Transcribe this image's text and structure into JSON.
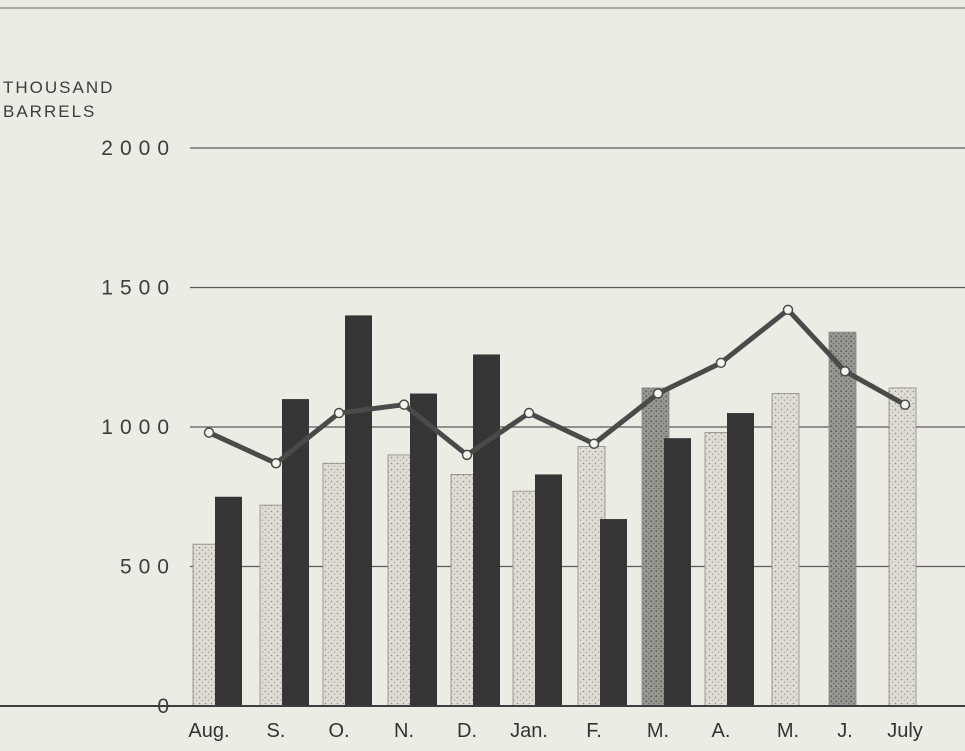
{
  "chart_data": {
    "type": "bar",
    "title": "",
    "ylabel_lines": [
      "THOUSAND",
      "BARRELS"
    ],
    "xlabel": "",
    "ylim": [
      0,
      2000
    ],
    "yticks": [
      0,
      500,
      1000,
      1500,
      2000
    ],
    "ytick_labels": [
      "0",
      "500",
      "1000",
      "1500",
      "2000"
    ],
    "grid": true,
    "legend": "none",
    "categories": [
      "Aug.",
      "S.",
      "O.",
      "N.",
      "D.",
      "Jan.",
      "F.",
      "M.",
      "A.",
      "M.",
      "J.",
      "July"
    ],
    "series": [
      {
        "kind": "bar",
        "style": "light-stippled",
        "values": [
          580,
          720,
          870,
          900,
          830,
          770,
          930,
          1140,
          980,
          1120,
          1340,
          1140
        ]
      },
      {
        "kind": "bar",
        "style": "dark-solid",
        "values": [
          750,
          1100,
          1400,
          1120,
          1260,
          830,
          670,
          960,
          1050,
          null,
          null,
          null
        ]
      },
      {
        "kind": "line",
        "style": "line-with-open-markers",
        "values": [
          980,
          870,
          1050,
          1080,
          900,
          1050,
          940,
          1120,
          1230,
          1420,
          1200,
          1080
        ]
      }
    ],
    "colors": {
      "background": "#ecebe4",
      "light_bar": "#dcdad2",
      "dark_bar": "#353535",
      "line": "#4a4a4a",
      "grid": "#5a5a5a"
    }
  }
}
